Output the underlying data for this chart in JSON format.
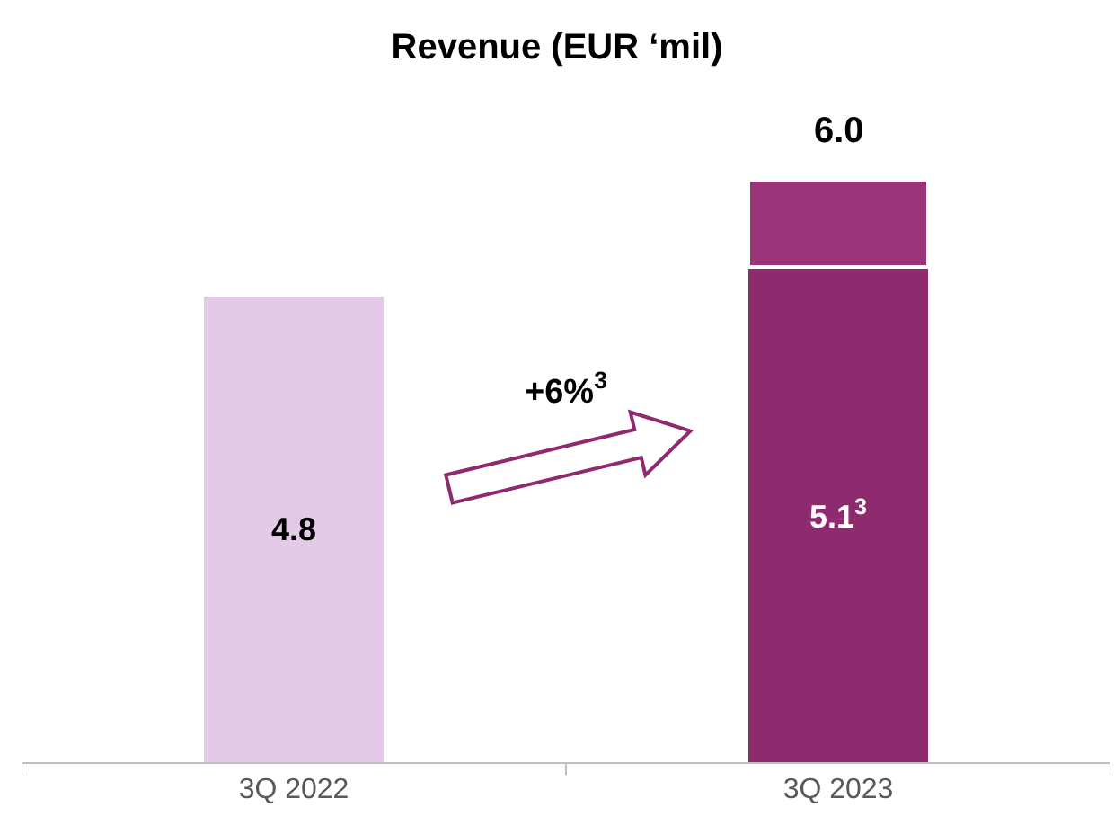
{
  "chart_data": {
    "type": "bar",
    "title": "Revenue (EUR ‘mil)",
    "categories": [
      "3Q 2022",
      "3Q 2023"
    ],
    "stacked": true,
    "series": [
      {
        "colors": [
          "#e3cbe8",
          "#8e2a6e"
        ],
        "values": [
          4.8,
          5.1
        ],
        "value_labels": [
          "4.8",
          "5.1$^{3}$"
        ]
      },
      {
        "color": "#9a3479",
        "values": [
          null,
          0.9
        ]
      }
    ],
    "totals": [
      null,
      "6.0"
    ],
    "annotations": [
      "+6%$^{3}$"
    ]
  }
}
